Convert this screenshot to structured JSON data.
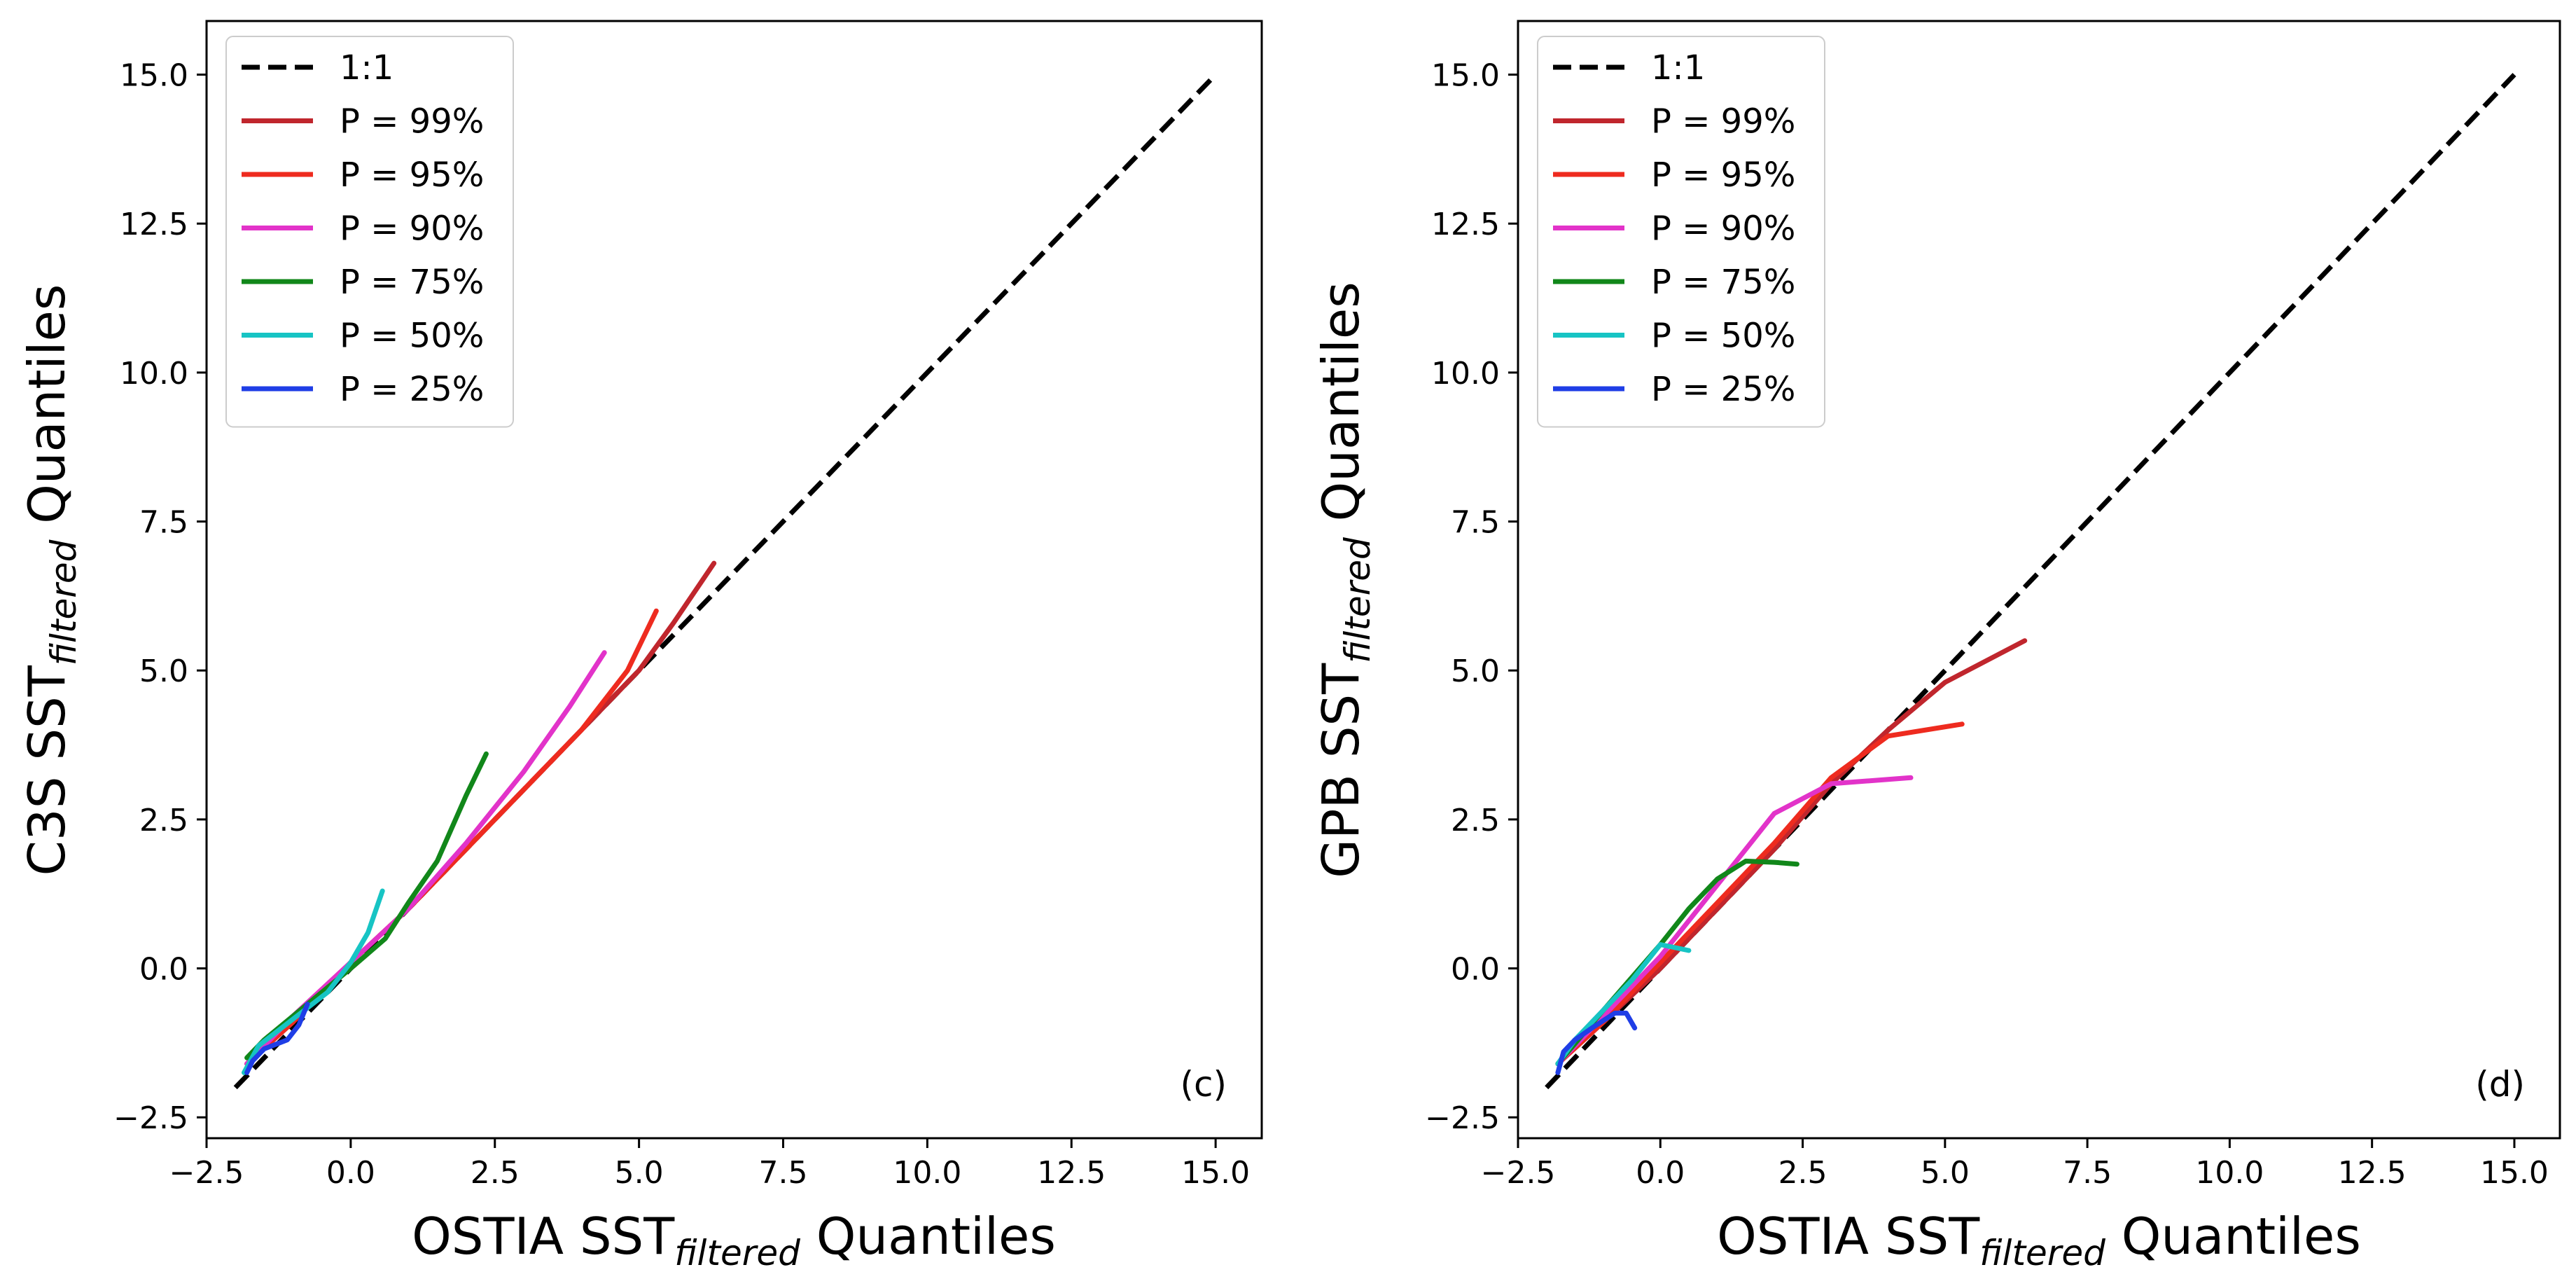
{
  "chart_data": [
    {
      "type": "line",
      "panel_label": "(c)",
      "xlabel": {
        "prefix": "OSTIA SST",
        "sub": "filtered",
        "suffix": " Quantiles"
      },
      "ylabel": {
        "prefix": "C3S SST",
        "sub": "filtered",
        "suffix": " Quantiles"
      },
      "xlim": [
        -2.5,
        15.8
      ],
      "ylim": [
        -2.85,
        15.9
      ],
      "xticks": [
        -2.5,
        0.0,
        2.5,
        5.0,
        7.5,
        10.0,
        12.5,
        15.0
      ],
      "yticks": [
        -2.5,
        0.0,
        2.5,
        5.0,
        7.5,
        10.0,
        12.5,
        15.0
      ],
      "xtick_labels": [
        "−2.5",
        "0.0",
        "2.5",
        "5.0",
        "7.5",
        "10.0",
        "12.5",
        "15.0"
      ],
      "ytick_labels": [
        "−2.5",
        "0.0",
        "2.5",
        "5.0",
        "7.5",
        "10.0",
        "12.5",
        "15.0"
      ],
      "legend_position": "top-left",
      "series": [
        {
          "name": "1:1",
          "color": "#000000",
          "dashed": true,
          "x": [
            -2.0,
            15.0
          ],
          "y": [
            -2.0,
            15.0
          ]
        },
        {
          "name": "P = 99%",
          "color": "#c0262d",
          "x": [
            -1.8,
            -1.0,
            0.0,
            1.0,
            2.0,
            3.0,
            4.0,
            5.0,
            5.6,
            6.3
          ],
          "y": [
            -1.6,
            -0.9,
            0.1,
            1.0,
            2.0,
            3.0,
            4.0,
            5.0,
            5.8,
            6.8
          ]
        },
        {
          "name": "P = 95%",
          "color": "#ee2b1f",
          "x": [
            -1.8,
            -1.0,
            0.0,
            1.0,
            2.0,
            3.0,
            4.0,
            4.8,
            5.3
          ],
          "y": [
            -1.6,
            -0.9,
            0.1,
            1.0,
            2.0,
            3.0,
            4.0,
            5.0,
            6.0
          ]
        },
        {
          "name": "P = 90%",
          "color": "#e233c9",
          "x": [
            -1.8,
            -1.0,
            0.0,
            1.0,
            2.0,
            3.0,
            3.8,
            4.4
          ],
          "y": [
            -1.6,
            -0.8,
            0.1,
            1.0,
            2.1,
            3.3,
            4.4,
            5.3
          ]
        },
        {
          "name": "P = 75%",
          "color": "#11871a",
          "x": [
            -1.8,
            -1.5,
            -1.0,
            -0.5,
            0.0,
            0.6,
            1.0,
            1.5,
            2.0,
            2.35
          ],
          "y": [
            -1.5,
            -1.2,
            -0.8,
            -0.4,
            0.0,
            0.5,
            1.1,
            1.8,
            2.9,
            3.6
          ]
        },
        {
          "name": "P = 50%",
          "color": "#17c4c4",
          "x": [
            -1.85,
            -1.6,
            -1.2,
            -0.8,
            -0.4,
            0.0,
            0.3,
            0.55
          ],
          "y": [
            -1.75,
            -1.3,
            -1.0,
            -0.7,
            -0.4,
            0.1,
            0.6,
            1.3
          ]
        },
        {
          "name": "P = 25%",
          "color": "#1f3ee6",
          "x": [
            -1.8,
            -1.7,
            -1.5,
            -1.1,
            -0.9,
            -0.75
          ],
          "y": [
            -1.75,
            -1.55,
            -1.35,
            -1.2,
            -0.95,
            -0.6
          ]
        }
      ]
    },
    {
      "type": "line",
      "panel_label": "(d)",
      "xlabel": {
        "prefix": "OSTIA SST",
        "sub": "filtered",
        "suffix": " Quantiles"
      },
      "ylabel": {
        "prefix": "GPB SST",
        "sub": "filtered",
        "suffix": " Quantiles"
      },
      "xlim": [
        -2.5,
        15.8
      ],
      "ylim": [
        -2.85,
        15.9
      ],
      "xticks": [
        -2.5,
        0.0,
        2.5,
        5.0,
        7.5,
        10.0,
        12.5,
        15.0
      ],
      "yticks": [
        -2.5,
        0.0,
        2.5,
        5.0,
        7.5,
        10.0,
        12.5,
        15.0
      ],
      "xtick_labels": [
        "−2.5",
        "0.0",
        "2.5",
        "5.0",
        "7.5",
        "10.0",
        "12.5",
        "15.0"
      ],
      "ytick_labels": [
        "−2.5",
        "0.0",
        "2.5",
        "5.0",
        "7.5",
        "10.0",
        "12.5",
        "15.0"
      ],
      "legend_position": "top-left",
      "series": [
        {
          "name": "1:1",
          "color": "#000000",
          "dashed": true,
          "x": [
            -2.0,
            15.0
          ],
          "y": [
            -2.0,
            15.0
          ]
        },
        {
          "name": "P = 99%",
          "color": "#c0262d",
          "x": [
            -1.8,
            -1.0,
            0.0,
            1.0,
            2.0,
            3.0,
            4.0,
            5.0,
            6.4
          ],
          "y": [
            -1.6,
            -0.9,
            0.0,
            1.0,
            2.0,
            3.1,
            4.0,
            4.8,
            5.5
          ]
        },
        {
          "name": "P = 95%",
          "color": "#ee2b1f",
          "x": [
            -1.8,
            -1.0,
            0.0,
            1.0,
            2.0,
            3.0,
            4.0,
            5.3
          ],
          "y": [
            -1.6,
            -0.9,
            0.1,
            1.1,
            2.1,
            3.2,
            3.9,
            4.1
          ]
        },
        {
          "name": "P = 90%",
          "color": "#e233c9",
          "x": [
            -1.8,
            -1.0,
            0.0,
            1.0,
            2.0,
            3.0,
            4.4
          ],
          "y": [
            -1.6,
            -0.8,
            0.2,
            1.4,
            2.6,
            3.1,
            3.2
          ]
        },
        {
          "name": "P = 75%",
          "color": "#11871a",
          "x": [
            -1.8,
            -1.0,
            0.0,
            0.5,
            1.0,
            1.5,
            2.0,
            2.4
          ],
          "y": [
            -1.6,
            -0.7,
            0.4,
            1.0,
            1.5,
            1.8,
            1.78,
            1.75
          ]
        },
        {
          "name": "P = 50%",
          "color": "#17c4c4",
          "x": [
            -1.8,
            -1.5,
            -1.0,
            -0.5,
            0.0,
            0.5
          ],
          "y": [
            -1.6,
            -1.2,
            -0.7,
            -0.2,
            0.4,
            0.3
          ]
        },
        {
          "name": "P = 25%",
          "color": "#1f3ee6",
          "x": [
            -1.8,
            -1.7,
            -1.5,
            -1.2,
            -0.8,
            -0.6,
            -0.45
          ],
          "y": [
            -1.75,
            -1.4,
            -1.2,
            -1.0,
            -0.75,
            -0.75,
            -1.0
          ]
        }
      ]
    }
  ]
}
